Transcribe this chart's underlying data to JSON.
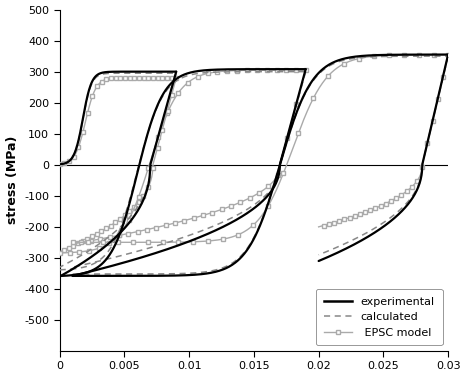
{
  "title": "",
  "xlabel": "",
  "ylabel": "stress (MPa)",
  "xlim": [
    0,
    0.03
  ],
  "ylim": [
    -600,
    500
  ],
  "yticks": [
    -500,
    -400,
    -300,
    -200,
    -100,
    0,
    100,
    200,
    300,
    400,
    500
  ],
  "xticks": [
    0,
    0.005,
    0.01,
    0.015,
    0.02,
    0.025,
    0.03
  ],
  "exp_color": "#000000",
  "calc_color": "#888888",
  "epsc_color": "#aaaaaa",
  "background_color": "#ffffff"
}
